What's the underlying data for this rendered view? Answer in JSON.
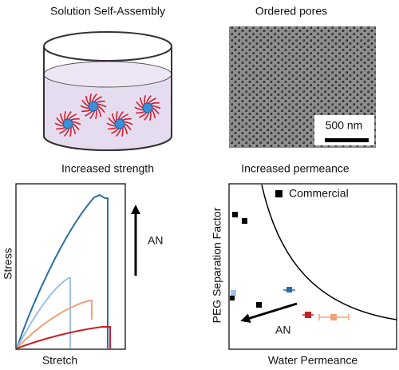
{
  "panels": [
    {
      "title": "Solution Self-Assembly"
    },
    {
      "title": "Ordered pores",
      "scale_bar": "500 nm"
    },
    {
      "title": "Increased strength",
      "x_label": "Stretch",
      "y_label": "Stress",
      "arrow_label": "AN"
    },
    {
      "title": "Increased permeance",
      "x_label": "Water Permeance",
      "y_label": "PEG Separation Factor",
      "legend": "Commercial",
      "arrow_label": "AN"
    }
  ]
}
